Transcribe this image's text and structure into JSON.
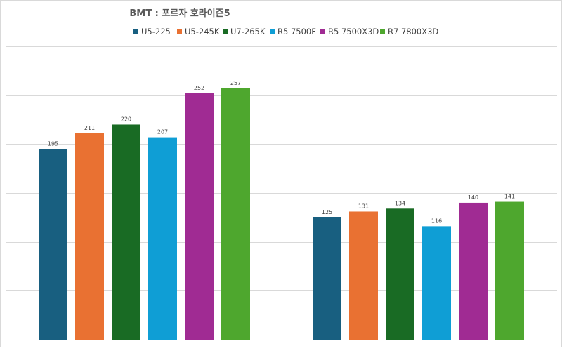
{
  "chart_data": {
    "type": "bar",
    "title": "BMT : 포르자 호라이즌5",
    "xlabel": "",
    "ylabel": "",
    "ylim": [
      0,
      300
    ],
    "grid": true,
    "legend": "top",
    "categories": [
      "",
      ""
    ],
    "series": [
      {
        "name": "U5-225",
        "color": "#185F80",
        "values": [
          195,
          125
        ]
      },
      {
        "name": "U5-245K",
        "color": "#E97132",
        "values": [
          211,
          131
        ]
      },
      {
        "name": "U7-265K",
        "color": "#196B24",
        "values": [
          220,
          134
        ]
      },
      {
        "name": "R5 7500F",
        "color": "#0F9ED5",
        "values": [
          207,
          116
        ]
      },
      {
        "name": "R5 7500X3D",
        "color": "#A02B93",
        "values": [
          252,
          140
        ]
      },
      {
        "name": "R7 7800X3D",
        "color": "#4EA72E",
        "values": [
          257,
          141
        ]
      }
    ]
  }
}
